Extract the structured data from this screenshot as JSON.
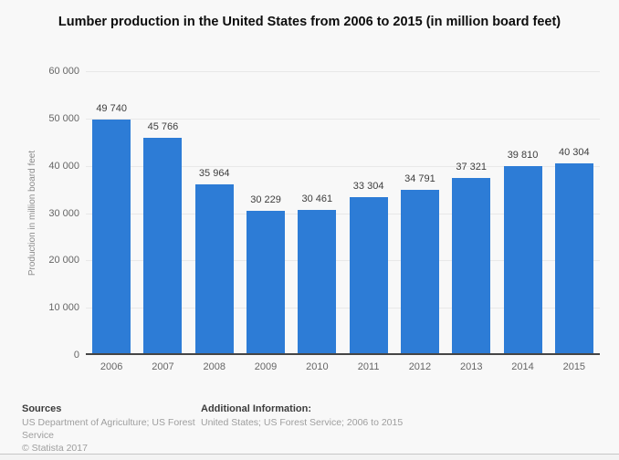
{
  "chart_data": {
    "type": "bar",
    "title": "Lumber production in the United States from 2006 to 2015 (in million board feet)",
    "categories": [
      "2006",
      "2007",
      "2008",
      "2009",
      "2010",
      "2011",
      "2012",
      "2013",
      "2014",
      "2015"
    ],
    "values": [
      49740,
      45766,
      35964,
      30229,
      30461,
      33304,
      34791,
      37321,
      39810,
      40304
    ],
    "value_labels": [
      "49 740",
      "45 766",
      "35 964",
      "30 229",
      "30 461",
      "33 304",
      "34 791",
      "37 321",
      "39 810",
      "40 304"
    ],
    "xlabel": "",
    "ylabel": "Production in million board feet",
    "ylim": [
      0,
      60000
    ],
    "ytick_step": 10000,
    "ytick_labels": [
      "0",
      "10 000",
      "20 000",
      "30 000",
      "40 000",
      "50 000",
      "60 000"
    ],
    "grid": true,
    "legend": null,
    "bar_color": "#2d7cd6"
  },
  "footer": {
    "sources_heading": "Sources",
    "sources_line1": "US Department of Agriculture; US Forest Service",
    "sources_line2": "© Statista 2017",
    "additional_heading": "Additional Information:",
    "additional_text": "United States; US Forest Service; 2006 to 2015"
  }
}
